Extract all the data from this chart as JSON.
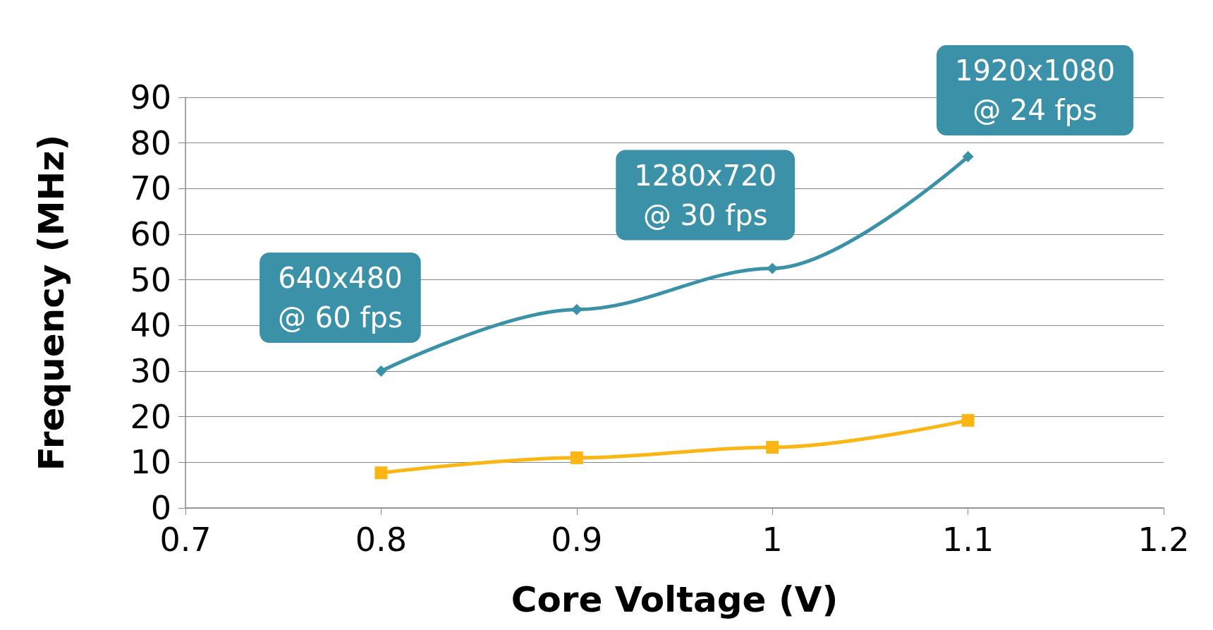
{
  "chart_data": {
    "type": "line",
    "xlabel": "Core Voltage (V)",
    "ylabel": "Frequency (MHz)",
    "x": [
      0.8,
      0.9,
      1,
      1.1
    ],
    "series": [
      {
        "color": "#3a91a8",
        "values": [
          30,
          43.5,
          52.5,
          77
        ],
        "marker": "diamond"
      },
      {
        "color": "#fbb614",
        "values": [
          7.7,
          11,
          13.3,
          19.2
        ],
        "marker": "square"
      }
    ],
    "xlim": [
      0.7,
      1.2
    ],
    "xticks": [
      0.7,
      0.8,
      0.9,
      1,
      1.1,
      1.2
    ],
    "ylim": [
      0,
      90
    ],
    "yticks": [
      0,
      10,
      20,
      30,
      40,
      50,
      60,
      70,
      80,
      90
    ],
    "grid": "y",
    "annotations": [
      {
        "text": "640x480\n@ 60 fps",
        "x": 0.8,
        "y": 30
      },
      {
        "text": "1280x720\n@ 30 fps",
        "x": 1,
        "y": 52.5
      },
      {
        "text": "1920x1080\n@ 24 fps",
        "x": 1.1,
        "y": 77
      }
    ]
  }
}
